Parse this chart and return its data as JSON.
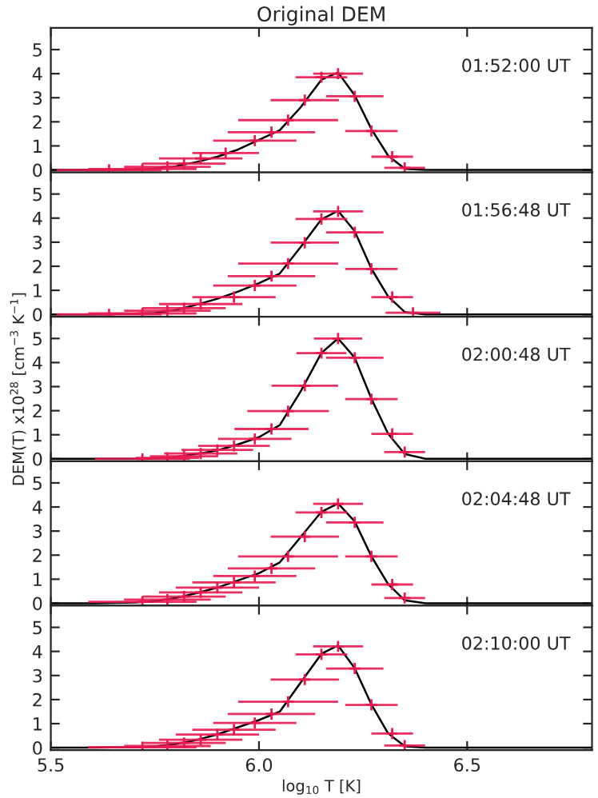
{
  "chart_data": [
    {
      "type": "line",
      "title": "Original DEM",
      "annotations": [
        "01:52:00 UT"
      ],
      "xlim": [
        5.5,
        6.8
      ],
      "ylim": [
        -0.1,
        5.9
      ],
      "yticks": [
        0,
        1,
        2,
        3,
        4,
        5
      ],
      "tick_labels": "y",
      "grid": false,
      "series": [
        {
          "color": "#000000",
          "x": [
            5.5,
            5.6,
            5.7,
            5.75,
            5.8,
            5.85,
            5.9,
            5.95,
            6.0,
            6.05,
            6.1,
            6.15,
            6.19,
            6.23,
            6.27,
            6.31,
            6.35,
            6.4,
            6.5,
            6.8
          ],
          "values": [
            0,
            0,
            0.02,
            0.06,
            0.15,
            0.33,
            0.55,
            0.85,
            1.25,
            1.65,
            2.6,
            3.75,
            4.05,
            3.1,
            1.7,
            0.6,
            0.05,
            0,
            0,
            0
          ]
        },
        {
          "type": "scatter",
          "marker": "cross",
          "color": "#e8194f",
          "x": [
            6.19,
            6.15,
            6.23,
            6.11,
            6.07,
            6.03,
            6.27,
            5.99,
            5.92,
            6.32,
            5.86,
            5.82,
            5.78,
            6.35,
            5.72,
            5.64
          ],
          "values": [
            4.0,
            3.85,
            3.06,
            2.9,
            2.07,
            1.57,
            1.62,
            1.22,
            0.7,
            0.55,
            0.48,
            0.26,
            0.13,
            0.09,
            0.04,
            0
          ],
          "xerrors": [
            0.06,
            0.062,
            0.069,
            0.082,
            0.12,
            0.105,
            0.063,
            0.1,
            0.08,
            0.05,
            0.1,
            0.1,
            0.104,
            0.049,
            0.13,
            0.126
          ]
        }
      ]
    },
    {
      "type": "line",
      "annotations": [
        "01:56:48 UT"
      ],
      "xlim": [
        5.5,
        6.8
      ],
      "ylim": [
        -0.1,
        5.9
      ],
      "yticks": [
        0,
        1,
        2,
        3,
        4,
        5
      ],
      "tick_labels": "y",
      "grid": false,
      "series": [
        {
          "color": "#000000",
          "x": [
            5.5,
            5.6,
            5.7,
            5.75,
            5.8,
            5.85,
            5.9,
            5.95,
            6.0,
            6.05,
            6.1,
            6.15,
            6.19,
            6.23,
            6.27,
            6.31,
            6.35,
            6.4,
            6.5,
            6.8
          ],
          "values": [
            0,
            0,
            0.02,
            0.06,
            0.18,
            0.4,
            0.65,
            0.95,
            1.3,
            1.7,
            2.8,
            3.95,
            4.3,
            3.45,
            1.9,
            0.75,
            0.1,
            0,
            0,
            0
          ]
        },
        {
          "type": "scatter",
          "marker": "cross",
          "color": "#e8194f",
          "x": [
            6.19,
            6.15,
            6.23,
            6.11,
            6.07,
            6.03,
            6.27,
            5.99,
            5.94,
            6.32,
            5.86,
            5.82,
            5.78,
            6.37,
            5.72,
            5.64
          ],
          "values": [
            4.28,
            3.96,
            3.41,
            2.98,
            2.11,
            1.59,
            1.89,
            1.2,
            0.72,
            0.72,
            0.43,
            0.26,
            0.15,
            0.07,
            0.04,
            0
          ],
          "xerrors": [
            0.06,
            0.062,
            0.069,
            0.082,
            0.12,
            0.105,
            0.063,
            0.1,
            0.1,
            0.05,
            0.1,
            0.1,
            0.104,
            0.066,
            0.13,
            0.126
          ]
        }
      ]
    },
    {
      "type": "line",
      "annotations": [
        "02:00:48 UT"
      ],
      "ylabel": "DEM(T) x10$^{28}$ [cm$^{−3}$ K$^{−1}$]",
      "xlim": [
        5.5,
        6.8
      ],
      "ylim": [
        -0.1,
        5.9
      ],
      "yticks": [
        0,
        1,
        2,
        3,
        4,
        5
      ],
      "tick_labels": "y",
      "grid": false,
      "series": [
        {
          "color": "#000000",
          "x": [
            5.5,
            5.6,
            5.7,
            5.75,
            5.8,
            5.85,
            5.9,
            5.95,
            6.0,
            6.05,
            6.1,
            6.15,
            6.19,
            6.23,
            6.27,
            6.31,
            6.35,
            6.4,
            6.5,
            6.8
          ],
          "values": [
            0,
            0,
            0,
            0.02,
            0.08,
            0.2,
            0.35,
            0.6,
            0.9,
            1.4,
            2.8,
            4.4,
            5.0,
            4.2,
            2.5,
            1.05,
            0.2,
            0,
            0,
            0
          ]
        },
        {
          "type": "scatter",
          "marker": "cross",
          "color": "#e8194f",
          "x": [
            6.19,
            6.15,
            6.23,
            6.11,
            6.07,
            6.27,
            6.03,
            5.99,
            6.32,
            5.94,
            5.9,
            6.35,
            5.86,
            5.82,
            5.78,
            5.72
          ],
          "values": [
            5.0,
            4.39,
            4.2,
            3.04,
            1.98,
            2.48,
            1.24,
            0.83,
            1.04,
            0.54,
            0.37,
            0.28,
            0.22,
            0.11,
            0.04,
            0
          ],
          "xerrors": [
            0.058,
            0.06,
            0.069,
            0.08,
            0.098,
            0.063,
            0.089,
            0.088,
            0.05,
            0.086,
            0.086,
            0.049,
            0.088,
            0.082,
            0.076,
            0.114
          ]
        }
      ]
    },
    {
      "type": "line",
      "annotations": [
        "02:04:48 UT"
      ],
      "xlim": [
        5.5,
        6.8
      ],
      "ylim": [
        -0.1,
        5.9
      ],
      "yticks": [
        0,
        1,
        2,
        3,
        4,
        5
      ],
      "tick_labels": "y",
      "grid": false,
      "series": [
        {
          "color": "#000000",
          "x": [
            5.5,
            5.6,
            5.7,
            5.75,
            5.8,
            5.85,
            5.9,
            5.95,
            6.0,
            6.05,
            6.1,
            6.15,
            6.19,
            6.23,
            6.27,
            6.31,
            6.35,
            6.4,
            6.5,
            6.8
          ],
          "values": [
            0,
            0,
            0.03,
            0.08,
            0.22,
            0.42,
            0.65,
            0.95,
            1.25,
            1.7,
            2.75,
            3.8,
            4.15,
            3.4,
            1.95,
            0.8,
            0.12,
            0,
            0,
            0
          ]
        },
        {
          "type": "scatter",
          "marker": "cross",
          "color": "#e8194f",
          "x": [
            6.19,
            6.15,
            6.23,
            6.11,
            6.07,
            6.27,
            6.03,
            5.99,
            5.94,
            5.9,
            6.32,
            5.86,
            5.82,
            6.35,
            5.78,
            5.72
          ],
          "values": [
            4.13,
            3.77,
            3.36,
            2.77,
            1.95,
            1.95,
            1.45,
            1.13,
            0.87,
            0.65,
            0.78,
            0.45,
            0.28,
            0.22,
            0.15,
            0.06
          ],
          "xerrors": [
            0.06,
            0.062,
            0.069,
            0.082,
            0.12,
            0.063,
            0.105,
            0.1,
            0.1,
            0.1,
            0.05,
            0.1,
            0.1,
            0.049,
            0.104,
            0.13
          ]
        }
      ]
    },
    {
      "type": "line",
      "annotations": [
        "02:10:00 UT"
      ],
      "xlabel": "log$_{10}$ T [K]",
      "xlim": [
        5.5,
        6.8
      ],
      "xticks": [
        5.5,
        {
          "value": 6.0,
          "label": "6.0"
        },
        6.5
      ],
      "ylim": [
        -0.1,
        5.9
      ],
      "yticks": [
        0,
        1,
        2,
        3,
        4,
        5
      ],
      "grid": false,
      "series": [
        {
          "color": "#000000",
          "x": [
            5.5,
            5.6,
            5.7,
            5.75,
            5.8,
            5.85,
            5.9,
            5.95,
            6.0,
            6.05,
            6.1,
            6.15,
            6.19,
            6.23,
            6.27,
            6.31,
            6.35,
            6.4,
            6.5,
            6.8
          ],
          "values": [
            0,
            0,
            0.02,
            0.05,
            0.15,
            0.32,
            0.55,
            0.85,
            1.15,
            1.5,
            2.7,
            3.9,
            4.25,
            3.3,
            1.8,
            0.6,
            0.06,
            0,
            0,
            0
          ]
        },
        {
          "type": "scatter",
          "marker": "cross",
          "color": "#e8194f",
          "x": [
            6.19,
            6.15,
            6.23,
            6.11,
            6.07,
            6.27,
            6.03,
            5.99,
            5.94,
            5.9,
            6.32,
            5.86,
            5.82,
            6.35,
            5.78,
            5.72
          ],
          "values": [
            4.21,
            3.88,
            3.29,
            2.83,
            1.91,
            1.78,
            1.4,
            1.03,
            0.75,
            0.55,
            0.59,
            0.33,
            0.2,
            0.09,
            0.07,
            0.02
          ],
          "xerrors": [
            0.06,
            0.062,
            0.069,
            0.082,
            0.12,
            0.063,
            0.105,
            0.1,
            0.1,
            0.1,
            0.05,
            0.1,
            0.1,
            0.049,
            0.104,
            0.13
          ]
        }
      ]
    }
  ]
}
